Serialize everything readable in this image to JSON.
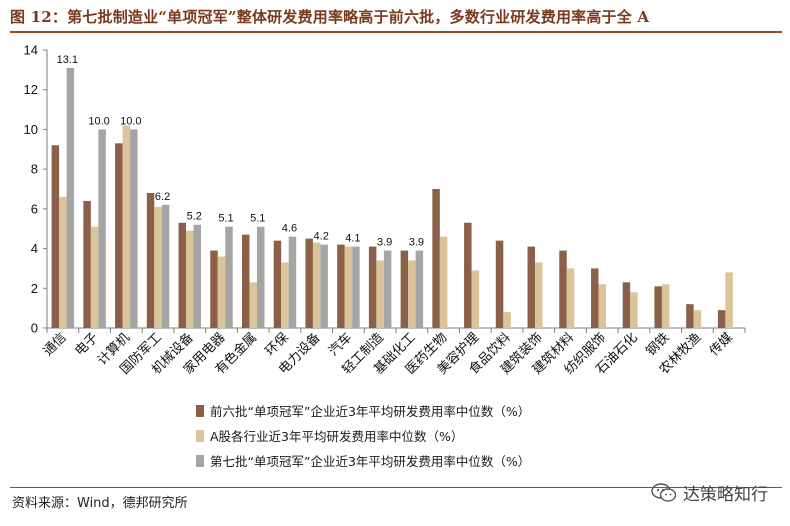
{
  "header": {
    "title": "图 12：第七批制造业“单项冠军”整体研发费用率略高于前六批，多数行业研发费用率高于全 A"
  },
  "footer": {
    "source": "资料来源：Wind，德邦研究所",
    "watermark": "达策略知行",
    "watermark_icon": "wechat-icon"
  },
  "chart_data": {
    "type": "bar",
    "title": "",
    "xlabel": "",
    "ylabel": "",
    "ylim": [
      0,
      14
    ],
    "yticks": [
      0,
      2,
      4,
      6,
      8,
      10,
      12,
      14
    ],
    "grid": false,
    "legend_position": "bottom",
    "categories": [
      "通信",
      "电子",
      "计算机",
      "国防军工",
      "机械设备",
      "家用电器",
      "有色金属",
      "环保",
      "电力设备",
      "汽车",
      "轻工制造",
      "基础化工",
      "医药生物",
      "美容护理",
      "食品饮料",
      "建筑装饰",
      "建筑材料",
      "纺织服饰",
      "石油石化",
      "钢铁",
      "农林牧渔",
      "传媒"
    ],
    "series": [
      {
        "name": "前六批“单项冠军”企业近3年平均研发费用率中位数（%）",
        "color": "#8b6048",
        "values": [
          9.2,
          6.4,
          9.3,
          6.8,
          5.3,
          3.9,
          4.7,
          4.4,
          4.5,
          4.2,
          4.1,
          3.9,
          7.0,
          5.3,
          4.4,
          4.1,
          3.9,
          3.0,
          2.3,
          2.1,
          1.2,
          0.9
        ]
      },
      {
        "name": "A股各行业近3年平均研发费用率中位数（%）",
        "color": "#dcc49a",
        "values": [
          6.6,
          5.1,
          10.2,
          6.1,
          4.9,
          3.6,
          2.3,
          3.3,
          4.3,
          4.1,
          3.4,
          3.4,
          4.6,
          2.9,
          0.8,
          3.3,
          3.0,
          2.2,
          1.8,
          2.2,
          0.9,
          2.8
        ]
      },
      {
        "name": "第七批“单项冠军”企业近3年平均研发费用率中位数（%）",
        "color": "#a5a5a5",
        "values": [
          13.1,
          10.0,
          10.0,
          6.2,
          5.2,
          5.1,
          5.1,
          4.6,
          4.2,
          4.1,
          3.9,
          3.9,
          null,
          null,
          null,
          null,
          null,
          null,
          null,
          null,
          null,
          null
        ]
      }
    ],
    "data_labels": [
      {
        "category_index": 0,
        "series_index": 2,
        "text": "13.1"
      },
      {
        "category_index": 1,
        "series_index": 2,
        "text": "10.0"
      },
      {
        "category_index": 2,
        "series_index": 2,
        "text": "10.0"
      },
      {
        "category_index": 3,
        "series_index": 2,
        "text": "6.2"
      },
      {
        "category_index": 4,
        "series_index": 2,
        "text": "5.2"
      },
      {
        "category_index": 5,
        "series_index": 2,
        "text": "5.1"
      },
      {
        "category_index": 6,
        "series_index": 2,
        "text": "5.1"
      },
      {
        "category_index": 7,
        "series_index": 2,
        "text": "4.6"
      },
      {
        "category_index": 8,
        "series_index": 2,
        "text": "4.2"
      },
      {
        "category_index": 9,
        "series_index": 2,
        "text": "4.1"
      },
      {
        "category_index": 10,
        "series_index": 2,
        "text": "3.9"
      },
      {
        "category_index": 11,
        "series_index": 2,
        "text": "3.9"
      }
    ]
  }
}
